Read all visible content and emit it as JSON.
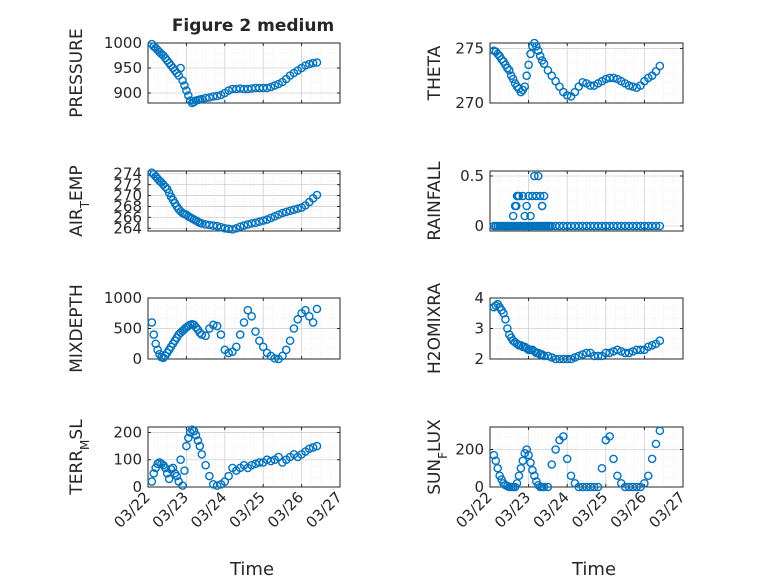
{
  "title": "Figure 2 medium",
  "xlabel": "Time",
  "x_ticks": [
    "03/22",
    "03/23",
    "03/24",
    "03/25",
    "03/26",
    "03/27"
  ],
  "colors": {
    "marker": "#0072BD",
    "axis": "#262626",
    "grid": "#dfdfdf"
  },
  "chart_data": [
    {
      "type": "scatter",
      "ylabel": "PRESSURE",
      "ylim": [
        880,
        1000
      ],
      "yticks": [
        1000,
        950,
        900
      ],
      "x": [
        0.1,
        0.15,
        0.2,
        0.25,
        0.3,
        0.35,
        0.4,
        0.45,
        0.5,
        0.55,
        0.6,
        0.65,
        0.7,
        0.75,
        0.8,
        0.85,
        0.9,
        0.95,
        1.0,
        1.05,
        1.1,
        1.15,
        1.2,
        1.25,
        1.3,
        1.35,
        1.4,
        1.5,
        1.6,
        1.7,
        1.8,
        1.9,
        2.0,
        2.1,
        2.2,
        2.3,
        2.4,
        2.5,
        2.6,
        2.7,
        2.8,
        2.9,
        3.0,
        3.1,
        3.2,
        3.3,
        3.4,
        3.5,
        3.6,
        3.7,
        3.8,
        3.9,
        4.0,
        4.1,
        4.2,
        4.3,
        4.4
      ],
      "y": [
        998,
        993,
        990,
        986,
        982,
        978,
        975,
        970,
        965,
        960,
        955,
        950,
        945,
        940,
        935,
        950,
        925,
        915,
        905,
        895,
        885,
        880,
        882,
        885,
        886,
        887,
        888,
        890,
        891,
        893,
        894,
        896,
        900,
        905,
        908,
        908,
        909,
        908,
        908,
        909,
        910,
        910,
        910,
        910,
        912,
        915,
        918,
        922,
        928,
        935,
        940,
        945,
        950,
        955,
        958,
        960,
        961
      ]
    },
    {
      "type": "scatter",
      "ylabel": "THETA",
      "ylim": [
        270,
        275.5
      ],
      "yticks": [
        275,
        270
      ],
      "x": [
        0.1,
        0.15,
        0.2,
        0.25,
        0.3,
        0.35,
        0.4,
        0.45,
        0.5,
        0.55,
        0.6,
        0.65,
        0.7,
        0.75,
        0.8,
        0.85,
        0.9,
        0.95,
        1.0,
        1.05,
        1.1,
        1.15,
        1.2,
        1.25,
        1.3,
        1.35,
        1.4,
        1.5,
        1.6,
        1.7,
        1.8,
        1.9,
        2.0,
        2.1,
        2.2,
        2.3,
        2.4,
        2.5,
        2.6,
        2.7,
        2.8,
        2.9,
        3.0,
        3.1,
        3.2,
        3.3,
        3.4,
        3.5,
        3.6,
        3.7,
        3.8,
        3.9,
        4.0,
        4.1,
        4.2,
        4.3,
        4.4
      ],
      "y": [
        274.8,
        274.7,
        274.5,
        274.3,
        274.0,
        273.8,
        273.5,
        273.2,
        273.0,
        272.5,
        272.2,
        271.8,
        271.5,
        271.3,
        271.0,
        271.2,
        271.5,
        272.5,
        273.5,
        274.5,
        275.2,
        275.5,
        275.2,
        274.8,
        274.3,
        273.9,
        273.6,
        273.0,
        272.5,
        272.0,
        271.5,
        271.0,
        270.7,
        270.6,
        271.0,
        271.5,
        271.9,
        271.8,
        271.6,
        271.6,
        271.8,
        272.0,
        272.2,
        272.3,
        272.3,
        272.2,
        272.0,
        271.8,
        271.6,
        271.5,
        271.4,
        271.6,
        272.0,
        272.3,
        272.5,
        272.9,
        273.4
      ]
    },
    {
      "type": "scatter",
      "ylabel": "AIR_TEMP",
      "ylim": [
        263.5,
        274.5
      ],
      "yticks": [
        274,
        272,
        270,
        268,
        266,
        264
      ],
      "x": [
        0.1,
        0.15,
        0.2,
        0.25,
        0.3,
        0.35,
        0.4,
        0.45,
        0.5,
        0.55,
        0.6,
        0.65,
        0.7,
        0.75,
        0.8,
        0.85,
        0.9,
        0.95,
        1.0,
        1.05,
        1.1,
        1.15,
        1.2,
        1.25,
        1.3,
        1.35,
        1.4,
        1.5,
        1.6,
        1.7,
        1.8,
        1.9,
        2.0,
        2.1,
        2.2,
        2.3,
        2.4,
        2.5,
        2.6,
        2.7,
        2.8,
        2.9,
        3.0,
        3.1,
        3.2,
        3.3,
        3.4,
        3.5,
        3.6,
        3.7,
        3.8,
        3.9,
        4.0,
        4.1,
        4.2,
        4.3,
        4.4
      ],
      "y": [
        274.2,
        273.9,
        273.5,
        273.1,
        272.7,
        272.4,
        272.0,
        271.6,
        271.2,
        270.5,
        269.8,
        269.2,
        268.6,
        268.0,
        267.5,
        267.1,
        266.8,
        266.6,
        266.5,
        266.2,
        266.0,
        265.8,
        265.6,
        265.4,
        265.2,
        265.0,
        264.9,
        264.7,
        264.6,
        264.5,
        264.4,
        264.2,
        264.0,
        263.9,
        263.8,
        264.0,
        264.3,
        264.5,
        264.7,
        264.9,
        265.0,
        265.2,
        265.4,
        265.6,
        265.9,
        266.2,
        266.5,
        266.8,
        267.0,
        267.2,
        267.4,
        267.6,
        267.8,
        268.2,
        268.8,
        269.5,
        270.1
      ]
    },
    {
      "type": "scatter",
      "ylabel": "RAINFALL",
      "ylim": [
        -0.05,
        0.55
      ],
      "yticks": [
        0.5,
        0
      ],
      "x": [
        0.1,
        0.15,
        0.2,
        0.25,
        0.3,
        0.35,
        0.4,
        0.45,
        0.5,
        0.55,
        0.6,
        0.65,
        0.7,
        0.75,
        0.8,
        0.85,
        0.9,
        0.95,
        1.0,
        1.05,
        1.1,
        1.15,
        1.2,
        1.25,
        1.3,
        1.35,
        1.4,
        1.45,
        1.5,
        1.55,
        1.6,
        1.7,
        1.8,
        1.9,
        2.0,
        2.1,
        2.2,
        2.3,
        2.4,
        2.5,
        2.6,
        2.7,
        2.8,
        2.9,
        3.0,
        3.1,
        3.2,
        3.3,
        3.4,
        3.5,
        3.6,
        3.7,
        3.8,
        3.9,
        4.0,
        4.1,
        4.2,
        4.3,
        4.4,
        0.6,
        0.65,
        0.7,
        0.75,
        0.85,
        0.9,
        0.95,
        1.0,
        1.05,
        1.1,
        1.2,
        1.3,
        1.35,
        1.4,
        0.68,
        0.72,
        1.35,
        1.15,
        1.25
      ],
      "y": [
        0,
        0,
        0,
        0,
        0,
        0,
        0,
        0,
        0,
        0,
        0,
        0,
        0,
        0,
        0,
        0,
        0,
        0,
        0,
        0,
        0,
        0,
        0,
        0,
        0,
        0,
        0,
        0,
        0,
        0,
        0,
        0,
        0,
        0,
        0,
        0,
        0,
        0,
        0,
        0,
        0,
        0,
        0,
        0,
        0,
        0,
        0,
        0,
        0,
        0,
        0,
        0,
        0,
        0,
        0,
        0,
        0,
        0,
        0,
        0.1,
        0.2,
        0.3,
        0.3,
        0.3,
        0.1,
        0.2,
        0.3,
        0.1,
        0.3,
        0.3,
        0.3,
        0.2,
        0.3,
        0.2,
        0.3,
        0.2,
        0.5,
        0.5
      ]
    },
    {
      "type": "scatter",
      "ylabel": "MIXDEPTH",
      "ylim": [
        0,
        1000
      ],
      "yticks": [
        1000,
        500,
        0
      ],
      "x": [
        0.1,
        0.15,
        0.2,
        0.25,
        0.3,
        0.35,
        0.4,
        0.45,
        0.5,
        0.55,
        0.6,
        0.65,
        0.7,
        0.75,
        0.8,
        0.85,
        0.9,
        0.95,
        1.0,
        1.05,
        1.1,
        1.15,
        1.2,
        1.25,
        1.3,
        1.35,
        1.4,
        1.5,
        1.6,
        1.7,
        1.8,
        1.9,
        2.0,
        2.1,
        2.2,
        2.3,
        2.4,
        2.5,
        2.6,
        2.7,
        2.8,
        2.9,
        3.0,
        3.1,
        3.2,
        3.3,
        3.4,
        3.5,
        3.6,
        3.7,
        3.8,
        3.9,
        4.0,
        4.1,
        4.2,
        4.3,
        4.4
      ],
      "y": [
        600,
        400,
        250,
        150,
        80,
        30,
        20,
        50,
        100,
        150,
        200,
        250,
        300,
        350,
        400,
        430,
        460,
        490,
        520,
        540,
        560,
        570,
        560,
        520,
        480,
        430,
        400,
        380,
        500,
        560,
        540,
        400,
        150,
        100,
        120,
        200,
        400,
        600,
        800,
        700,
        450,
        300,
        200,
        100,
        50,
        10,
        0,
        50,
        150,
        300,
        500,
        650,
        750,
        800,
        700,
        600,
        820
      ]
    },
    {
      "type": "scatter",
      "ylabel": "H2OMIXRA",
      "ylim": [
        2,
        4
      ],
      "yticks": [
        4,
        3,
        2
      ],
      "x": [
        0.1,
        0.15,
        0.2,
        0.25,
        0.3,
        0.35,
        0.4,
        0.45,
        0.5,
        0.55,
        0.6,
        0.65,
        0.7,
        0.75,
        0.8,
        0.85,
        0.9,
        0.95,
        1.0,
        1.05,
        1.1,
        1.15,
        1.2,
        1.25,
        1.3,
        1.35,
        1.4,
        1.5,
        1.6,
        1.7,
        1.8,
        1.9,
        2.0,
        2.1,
        2.2,
        2.3,
        2.4,
        2.5,
        2.6,
        2.7,
        2.8,
        2.9,
        3.0,
        3.1,
        3.2,
        3.3,
        3.4,
        3.5,
        3.6,
        3.7,
        3.8,
        3.9,
        4.0,
        4.1,
        4.2,
        4.3,
        4.4
      ],
      "y": [
        3.7,
        3.75,
        3.8,
        3.7,
        3.6,
        3.5,
        3.3,
        3.0,
        2.8,
        2.7,
        2.6,
        2.55,
        2.5,
        2.45,
        2.45,
        2.4,
        2.4,
        2.35,
        2.3,
        2.3,
        2.3,
        2.25,
        2.2,
        2.2,
        2.15,
        2.15,
        2.1,
        2.1,
        2.05,
        2.0,
        2.0,
        2.0,
        2.0,
        2.0,
        2.05,
        2.1,
        2.15,
        2.2,
        2.2,
        2.1,
        2.1,
        2.1,
        2.2,
        2.2,
        2.25,
        2.3,
        2.25,
        2.2,
        2.2,
        2.25,
        2.3,
        2.3,
        2.3,
        2.4,
        2.45,
        2.5,
        2.6
      ]
    },
    {
      "type": "scatter",
      "ylabel": "TERR_MSL",
      "ylim": [
        0,
        220
      ],
      "yticks": [
        200,
        100,
        0
      ],
      "x": [
        0.1,
        0.15,
        0.2,
        0.25,
        0.3,
        0.35,
        0.4,
        0.45,
        0.5,
        0.55,
        0.6,
        0.65,
        0.7,
        0.75,
        0.8,
        0.85,
        0.9,
        0.95,
        1.0,
        1.05,
        1.1,
        1.15,
        1.2,
        1.25,
        1.3,
        1.35,
        1.4,
        1.5,
        1.6,
        1.7,
        1.8,
        1.9,
        2.0,
        2.1,
        2.2,
        2.3,
        2.4,
        2.5,
        2.6,
        2.7,
        2.8,
        2.9,
        3.0,
        3.1,
        3.2,
        3.3,
        3.4,
        3.5,
        3.6,
        3.7,
        3.8,
        3.9,
        4.0,
        4.1,
        4.2,
        4.3,
        4.4
      ],
      "y": [
        20,
        50,
        70,
        85,
        90,
        85,
        80,
        70,
        50,
        30,
        65,
        70,
        50,
        40,
        20,
        100,
        5,
        60,
        150,
        180,
        200,
        210,
        205,
        190,
        170,
        150,
        120,
        80,
        40,
        10,
        5,
        10,
        20,
        40,
        70,
        60,
        70,
        80,
        70,
        80,
        85,
        90,
        90,
        100,
        95,
        100,
        110,
        90,
        100,
        110,
        120,
        110,
        120,
        130,
        140,
        145,
        150
      ]
    },
    {
      "type": "scatter",
      "ylabel": "SUN_FLUX",
      "ylim": [
        0,
        320
      ],
      "yticks": [
        200,
        0
      ],
      "x": [
        0.1,
        0.15,
        0.2,
        0.25,
        0.3,
        0.35,
        0.4,
        0.45,
        0.5,
        0.55,
        0.6,
        0.65,
        0.7,
        0.75,
        0.8,
        0.85,
        0.9,
        0.95,
        1.0,
        1.05,
        1.1,
        1.15,
        1.2,
        1.25,
        1.3,
        1.35,
        1.4,
        1.5,
        1.6,
        1.7,
        1.8,
        1.9,
        2.0,
        2.1,
        2.2,
        2.3,
        2.4,
        2.5,
        2.6,
        2.7,
        2.8,
        2.9,
        3.0,
        3.1,
        3.2,
        3.3,
        3.4,
        3.5,
        3.6,
        3.7,
        3.8,
        3.9,
        4.0,
        4.1,
        4.2,
        4.3,
        4.4
      ],
      "y": [
        170,
        140,
        100,
        60,
        40,
        20,
        10,
        5,
        0,
        0,
        0,
        0,
        20,
        60,
        100,
        140,
        180,
        200,
        170,
        130,
        90,
        60,
        30,
        10,
        0,
        0,
        0,
        0,
        120,
        200,
        250,
        270,
        150,
        60,
        20,
        0,
        0,
        0,
        0,
        0,
        0,
        100,
        250,
        270,
        150,
        60,
        20,
        0,
        0,
        0,
        0,
        0,
        20,
        60,
        150,
        230,
        300
      ]
    }
  ]
}
